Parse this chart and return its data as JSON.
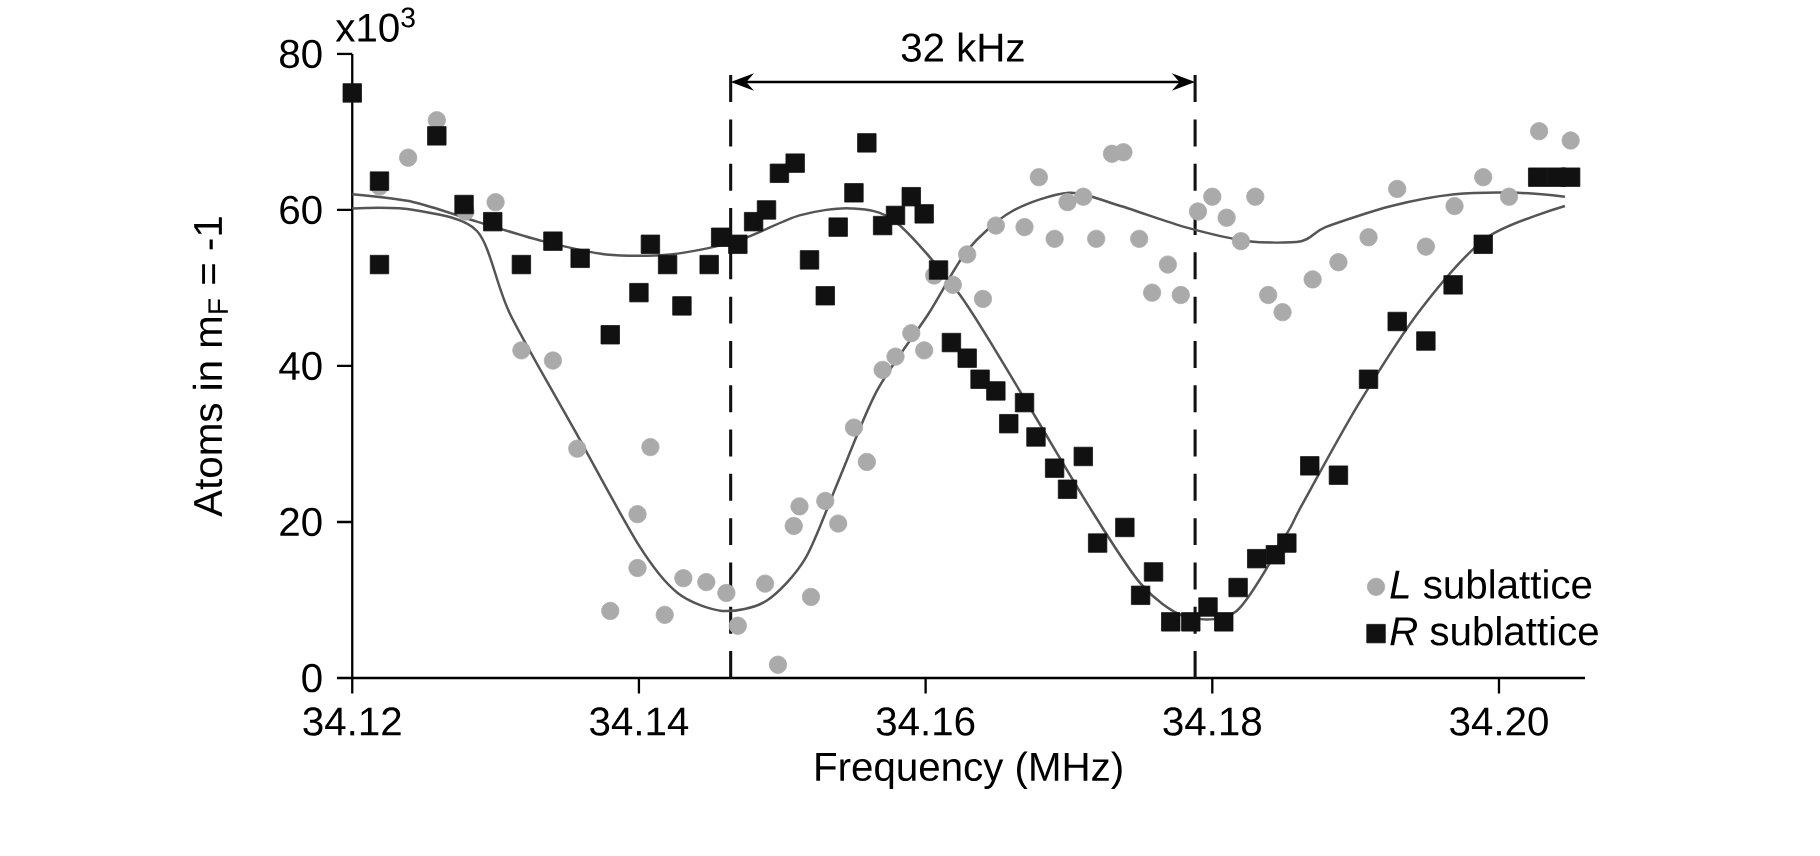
{
  "chart_data": {
    "type": "scatter",
    "xlabel": "Frequency (MHz)",
    "ylabel": "Atoms in m$_{F}$ = -1",
    "xlim": [
      34.12,
      34.206
    ],
    "ylim": [
      0,
      80
    ],
    "xticks": [
      34.12,
      34.14,
      34.16,
      34.18,
      {
        "value": 34.2,
        "label": "34.20"
      }
    ],
    "yticks": [
      0,
      20,
      40,
      60,
      80
    ],
    "legend": "bottom right",
    "grid": false,
    "annotations": [
      "32 kHz",
      "x10$^{3}$"
    ],
    "ref_lines": [
      {
        "axis": "x",
        "value": 34.1464,
        "color": "#111111",
        "line_style": "dashed"
      },
      {
        "axis": "x",
        "value": 34.1788,
        "color": "#111111",
        "line_style": "dashed"
      }
    ],
    "series": [
      {
        "name": "*L* sublattice",
        "marker": "circle",
        "color": "#aaaaaa",
        "x": [
          34.1219,
          34.1239,
          34.1259,
          34.1279,
          34.13,
          34.1318,
          34.134,
          34.1357,
          34.1408,
          34.1399,
          34.1399,
          34.138,
          34.1418,
          34.1431,
          34.1447,
          34.1461,
          34.1469,
          34.1488,
          34.1497,
          34.1508,
          34.152,
          34.1512,
          34.153,
          34.1539,
          34.155,
          34.1559,
          34.157,
          34.1579,
          34.159,
          34.1599,
          34.1606,
          34.1619,
          34.1629,
          34.164,
          34.1649,
          34.1669,
          34.1679,
          34.169,
          34.1699,
          34.171,
          34.1719,
          34.173,
          34.1738,
          34.1749,
          34.1758,
          34.1769,
          34.1778,
          34.179,
          34.18,
          34.181,
          34.182,
          34.183,
          34.1839,
          34.1849,
          34.187,
          34.1888,
          34.1909,
          34.1929,
          34.1949,
          34.1969,
          34.1989,
          34.2007,
          34.2028,
          34.205
        ],
        "values": [
          63,
          66.7,
          71.5,
          59.8,
          61,
          42,
          40.7,
          29.4,
          29.6,
          21,
          14.1,
          8.6,
          8.1,
          12.8,
          12.3,
          10.9,
          6.7,
          12.1,
          1.7,
          19.5,
          10.4,
          22,
          22.7,
          19.8,
          32.1,
          27.7,
          39.5,
          41.2,
          44.2,
          42,
          51.6,
          50.4,
          54.3,
          48.6,
          58,
          57.8,
          64.2,
          56.3,
          61,
          61.7,
          56.3,
          67.2,
          67.4,
          56.3,
          49.4,
          53,
          49.1,
          59.8,
          61.7,
          59,
          56,
          61.7,
          49.1,
          46.9,
          51.1,
          53.3,
          56.5,
          62.7,
          55.3,
          60.5,
          64.2,
          61.7,
          70.1,
          68.9
        ]
      },
      {
        "name": "*R* sublattice",
        "marker": "square",
        "color": "#111111",
        "x": [
          34.12,
          34.1219,
          34.1219,
          34.1259,
          34.1278,
          34.1298,
          34.1318,
          34.134,
          34.1359,
          34.138,
          34.14,
          34.1408,
          34.142,
          34.143,
          34.1449,
          34.1457,
          34.1469,
          34.148,
          34.1489,
          34.1498,
          34.1509,
          34.1519,
          34.153,
          34.1539,
          34.155,
          34.1559,
          34.157,
          34.1579,
          34.159,
          34.1599,
          34.1609,
          34.1618,
          34.1629,
          34.1638,
          34.1649,
          34.1658,
          34.1669,
          34.1677,
          34.169,
          34.1699,
          34.171,
          34.172,
          34.1739,
          34.175,
          34.1759,
          34.1771,
          34.1785,
          34.1797,
          34.1808,
          34.1818,
          34.1831,
          34.1844,
          34.1852,
          34.1868,
          34.1888,
          34.1909,
          34.1929,
          34.1949,
          34.1968,
          34.1989,
          34.2027,
          34.204,
          34.205
        ],
        "values": [
          75,
          53,
          63.7,
          69.5,
          60.7,
          58.5,
          53,
          56,
          53.8,
          44,
          49.4,
          55.6,
          53,
          47.7,
          53,
          56.5,
          55.6,
          58.5,
          60,
          64.7,
          66,
          53.6,
          49,
          57.8,
          62.2,
          68.6,
          58,
          59.3,
          61.7,
          59.5,
          52.3,
          43,
          41,
          38.3,
          36.8,
          32.6,
          35.3,
          30.9,
          26.9,
          24.2,
          28.4,
          17.3,
          19.3,
          10.6,
          13.6,
          7.2,
          7.2,
          9.1,
          7.2,
          11.6,
          15.3,
          15.8,
          17.3,
          27.2,
          26,
          38.3,
          45.7,
          43.2,
          50.4,
          55.6,
          64.2,
          64.2,
          64.2
        ]
      },
      {
        "type": "line",
        "marker": "none",
        "color": "#555555",
        "x": [
          34.12,
          34.1243,
          34.1287,
          34.131,
          34.1355,
          34.14,
          34.1427,
          34.1458,
          34.1489,
          34.1516,
          34.1539,
          34.1566,
          34.1602,
          34.1629,
          34.166,
          34.17,
          34.1736,
          34.1781,
          34.1825,
          34.1862,
          34.1879,
          34.1925,
          34.1969,
          34.2013,
          34.2046
        ],
        "values": [
          60.2,
          60,
          57.3,
          46.7,
          31.8,
          17,
          10.9,
          8.6,
          9.9,
          15.3,
          25.2,
          36.8,
          46.7,
          54.8,
          59.8,
          62.2,
          60.5,
          57.8,
          56,
          56,
          57.8,
          60.5,
          62,
          62.2,
          61.7
        ]
      },
      {
        "type": "line",
        "marker": "none",
        "color": "#555555",
        "x": [
          34.12,
          34.1243,
          34.1287,
          34.1333,
          34.1377,
          34.1422,
          34.1468,
          34.1512,
          34.1548,
          34.1579,
          34.1624,
          34.1669,
          34.1714,
          34.175,
          34.1781,
          34.1817,
          34.1852,
          34.1862,
          34.1902,
          34.1946,
          34.1992,
          34.2046
        ],
        "values": [
          62,
          61,
          58.5,
          56,
          54.3,
          54.3,
          56,
          59.3,
          60.2,
          58.5,
          49.1,
          35.8,
          22,
          12.1,
          7.9,
          8.6,
          18.5,
          22,
          35.1,
          47.4,
          56.5,
          60.5
        ]
      }
    ]
  }
}
